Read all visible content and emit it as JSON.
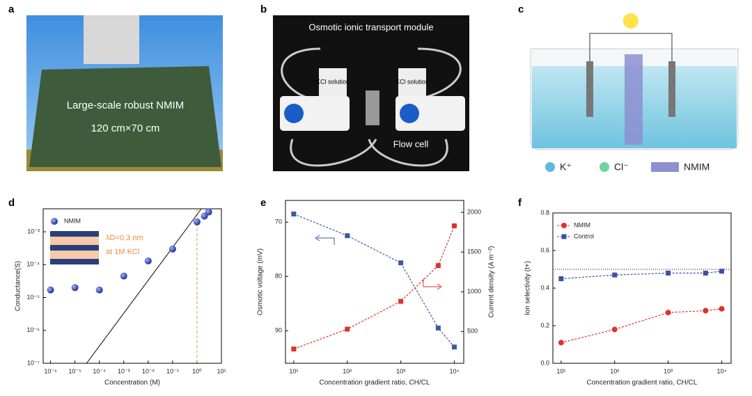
{
  "panel_labels": [
    "a",
    "b",
    "c",
    "d",
    "e",
    "f"
  ],
  "photo_a": {
    "title": "Large-scale robust NMIM",
    "size": "120 cm×70 cm"
  },
  "photo_b": {
    "title": "Osmotic ionic transport module",
    "left_tank": "KCl solution",
    "right_tank": "KCl solution",
    "cell": "Flow cell"
  },
  "schematic_c": {
    "legend": [
      "K⁺",
      "Cl⁻",
      "NMIM"
    ]
  },
  "chart_data": [
    {
      "type": "scatter",
      "xlabel": "Concentration (M)",
      "ylabel": "Conductance(S)",
      "xlog": true,
      "ylog": true,
      "xlim": [
        5e-07,
        10
      ],
      "ylim": [
        1e-07,
        0.005
      ],
      "xticks": [
        {
          "value": 1e-06,
          "label": "10⁻⁶"
        },
        {
          "value": 1e-05,
          "label": "10⁻⁵"
        },
        {
          "value": 0.0001,
          "label": "10⁻⁴"
        },
        {
          "value": 0.001,
          "label": "10⁻³"
        },
        {
          "value": 0.01,
          "label": "10⁻²"
        },
        {
          "value": 0.1,
          "label": "10⁻¹"
        },
        {
          "value": 1,
          "label": "10⁰"
        },
        {
          "value": 10,
          "label": "10¹"
        }
      ],
      "yticks": [
        {
          "value": 1e-07,
          "label": "10⁻⁷"
        },
        {
          "value": 1e-06,
          "label": "10⁻⁶"
        },
        {
          "value": 1e-05,
          "label": "10⁻⁵"
        },
        {
          "value": 0.0001,
          "label": "10⁻⁴"
        },
        {
          "value": 0.001,
          "label": "10⁻³"
        }
      ],
      "series": [
        {
          "name": "NMIM",
          "color": "#2430a8",
          "x": [
            1e-06,
            1e-05,
            0.0001,
            0.001,
            0.01,
            0.1,
            1,
            2,
            3
          ],
          "values": [
            1.7e-05,
            2e-05,
            1.7e-05,
            4.5e-05,
            0.00013,
            0.0003,
            0.002,
            0.003,
            0.004
          ]
        }
      ],
      "lines": [
        {
          "color": "#000000",
          "x": [
            3e-05,
            1.5
          ],
          "y": [
            1e-07,
            0.005
          ]
        }
      ],
      "vline": {
        "x": 1,
        "color": "#f08a3c"
      },
      "annotations": [
        "λD=0.3 nm",
        "at 1M KCl"
      ]
    },
    {
      "type": "line",
      "xlabel": "Concentration gradient ratio, CH/CL",
      "ylabel": "Osmotic voltage (mV)",
      "y2label": "Current density (A m⁻²)",
      "xlog": true,
      "xlim": [
        7,
        15000
      ],
      "ylim": [
        96,
        66
      ],
      "y2lim": [
        100,
        2150
      ],
      "xticks": [
        {
          "value": 10,
          "label": "10¹"
        },
        {
          "value": 100,
          "label": "10²"
        },
        {
          "value": 1000,
          "label": "10³"
        },
        {
          "value": 10000,
          "label": "10⁴"
        }
      ],
      "yticks": [
        70,
        80,
        90
      ],
      "y2ticks": [
        500,
        1000,
        1500,
        2000
      ],
      "x": [
        10,
        100,
        1000,
        5000,
        10000
      ],
      "series": [
        {
          "color": "#3a5aa8",
          "values": [
            68.5,
            72.5,
            77.5,
            89.5,
            93
          ],
          "marker": "square"
        },
        {
          "color": "#e0302a",
          "axis": "y2",
          "values": [
            280,
            530,
            880,
            1330,
            1830
          ],
          "marker": "square"
        }
      ]
    },
    {
      "type": "line",
      "xlabel": "Concentration gradient ratio, CH/CL",
      "ylabel": "Ion selectivity (t+)",
      "xlog": true,
      "xlim": [
        7,
        15000
      ],
      "ylim": [
        0,
        0.8
      ],
      "xticks": [
        {
          "value": 10,
          "label": "10¹"
        },
        {
          "value": 100,
          "label": "10²"
        },
        {
          "value": 1000,
          "label": "10³"
        },
        {
          "value": 10000,
          "label": "10⁴"
        }
      ],
      "yticks": [
        {
          "value": 0,
          "label": "0.0"
        },
        0.2,
        0.4,
        0.6,
        0.8
      ],
      "x": [
        10,
        100,
        1000,
        5000,
        10000
      ],
      "series": [
        {
          "name": "NMIM",
          "color": "#e0302a",
          "values": [
            0.11,
            0.18,
            0.27,
            0.28,
            0.29
          ],
          "marker": "circle"
        },
        {
          "name": "Control",
          "color": "#3a4fa8",
          "values": [
            0.45,
            0.47,
            0.48,
            0.48,
            0.49
          ],
          "marker": "square"
        }
      ],
      "reference_line": 0.5
    }
  ]
}
